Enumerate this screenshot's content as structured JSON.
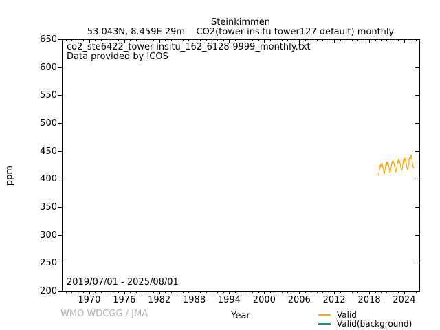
{
  "header": {
    "title": "Steinkimmen",
    "subtitle": "53.043N, 8.459E 29m    CO2(tower-insitu tower127 default) monthly"
  },
  "plot_annotations": {
    "file_line": "co2_ste6422_tower-insitu_162_6128-9999_monthly.txt",
    "provider_line": "Data provided by ICOS",
    "date_range": "2019/07/01 - 2025/08/01"
  },
  "axes": {
    "ylabel": "ppm",
    "xlabel": "Year"
  },
  "footer": {
    "credit": "WMO WDCGG / JMA"
  },
  "legend": {
    "items": [
      {
        "label": "Valid",
        "color": "#FFA500"
      },
      {
        "label": "Valid(background)",
        "color": "#2E8B57"
      }
    ]
  },
  "colors": {
    "axis": "#000000",
    "valid_series": "#FFA500",
    "background_series": "#2E8B57",
    "credit_gray": "#b3b3b3"
  },
  "chart_data": {
    "type": "line",
    "title": "Steinkimmen",
    "xlabel": "Year",
    "ylabel": "ppm",
    "xlim": [
      1965.3,
      2026.6
    ],
    "ylim": [
      200,
      650
    ],
    "xticks": [
      1970,
      1976,
      1982,
      1988,
      1994,
      2000,
      2006,
      2012,
      2018,
      2024
    ],
    "yticks": [
      200,
      250,
      300,
      350,
      400,
      450,
      500,
      550,
      600,
      650
    ],
    "minor_xtick_step_years": 1,
    "grid": false,
    "legend_position": "bottom-right-outside",
    "series": [
      {
        "name": "Valid",
        "color": "#FFA500",
        "cadence": "monthly",
        "start_year": 2019,
        "start_month": 7,
        "end": "2025-08",
        "values": [
          410,
          408,
          413,
          419,
          424,
          426,
          421,
          427,
          428,
          425,
          420,
          414,
          411,
          410,
          416,
          422,
          427,
          431,
          424,
          430,
          429,
          426,
          421,
          415,
          412,
          413,
          418,
          423,
          429,
          431,
          426,
          432,
          430,
          427,
          423,
          416,
          413,
          414,
          419,
          425,
          431,
          433,
          428,
          434,
          432,
          429,
          425,
          418,
          415,
          416,
          421,
          428,
          433,
          436,
          431,
          437,
          435,
          432,
          427,
          421,
          417,
          418,
          424,
          430,
          436,
          439,
          434,
          440,
          443,
          438,
          431,
          425,
          421,
          419
        ]
      },
      {
        "name": "Valid(background)",
        "color": "#2E8B57",
        "cadence": "monthly",
        "values": []
      }
    ]
  }
}
